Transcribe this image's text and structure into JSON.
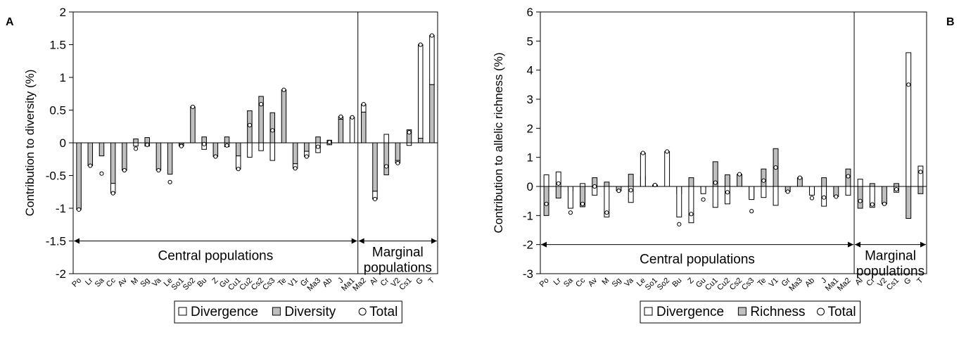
{
  "chart_data": [
    {
      "type": "bar",
      "panel_label": "A",
      "ylabel": "Contribution to diversity (%)",
      "ylim": [
        -2,
        2
      ],
      "yticks": [
        "2",
        "1.5",
        "1",
        "0.5",
        "0",
        "-0.5",
        "-1",
        "-1.5",
        "-2"
      ],
      "grid": false,
      "legend_position": "bottom",
      "legend": [
        "Divergence",
        "Diversity",
        "Total"
      ],
      "series_colors": {
        "divergence": "#ffffff",
        "diversity": "#bfbfbf"
      },
      "regions": [
        {
          "label": "Central populations",
          "label_lines": [
            "Central populations"
          ]
        },
        {
          "label": "Marginal populations",
          "label_lines": [
            "Marginal",
            "populations"
          ]
        }
      ],
      "categories": [
        "Po",
        "Lr",
        "Sa",
        "Cc",
        "Av",
        "M",
        "Sg",
        "Va",
        "Le",
        "So1",
        "So2",
        "Bu",
        "Z",
        "Gu",
        "Cu1",
        "Cu2",
        "Cs2",
        "Cs3",
        "Te",
        "V1",
        "Gr",
        "Ma3",
        "Ab",
        "J",
        "Ma1",
        "Ma2",
        "Al",
        "Cr",
        "V2",
        "Cs1",
        "G",
        "T"
      ],
      "divergence": [
        0,
        0,
        0,
        -0.15,
        0,
        -0.05,
        -0.05,
        0,
        0,
        -0.03,
        0,
        -0.1,
        0,
        -0.06,
        -0.2,
        -0.22,
        -0.12,
        -0.27,
        0,
        -0.07,
        -0.08,
        -0.15,
        -0.03,
        0.04,
        0.39,
        0.12,
        -0.12,
        0.13,
        -0.04,
        -0.04,
        1.43,
        0.75
      ],
      "diversity": [
        -1.02,
        -0.35,
        -0.2,
        -0.62,
        -0.42,
        0.06,
        0.08,
        -0.42,
        -0.48,
        -0.02,
        0.55,
        0.09,
        -0.21,
        0.09,
        -0.2,
        0.49,
        0.71,
        0.46,
        0.81,
        -0.32,
        -0.13,
        0.09,
        0.04,
        0.36,
        0,
        0.47,
        -0.74,
        -0.49,
        -0.27,
        0.2,
        0.07,
        0.89
      ],
      "total": [
        -1.02,
        -0.35,
        -0.47,
        -0.77,
        -0.42,
        -0.09,
        -0.03,
        -0.42,
        -0.6,
        -0.05,
        0.55,
        -0.02,
        -0.21,
        -0.04,
        -0.4,
        0.27,
        0.59,
        0.19,
        0.81,
        -0.39,
        -0.21,
        -0.06,
        0.01,
        0.4,
        0.39,
        0.59,
        -0.86,
        -0.36,
        -0.31,
        0.16,
        1.5,
        1.64
      ]
    },
    {
      "type": "bar",
      "panel_label": "B",
      "ylabel": "Contribution to allelic richness (%)",
      "ylim": [
        -3,
        6
      ],
      "yticks": [
        "6",
        "5",
        "4",
        "3",
        "2",
        "1",
        "0",
        "-1",
        "-2",
        "-3"
      ],
      "grid": false,
      "legend_position": "bottom",
      "legend": [
        "Divergence",
        "Richness",
        "Total"
      ],
      "series_colors": {
        "divergence": "#ffffff",
        "richness": "#bfbfbf"
      },
      "regions": [
        {
          "label": "Central populations",
          "label_lines": [
            "Central populations"
          ]
        },
        {
          "label": "Marginal populations",
          "label_lines": [
            "Marginal",
            "populations"
          ]
        }
      ],
      "categories": [
        "Po",
        "Lr",
        "Sa",
        "Cc",
        "Av",
        "M",
        "Sg",
        "Va",
        "Le",
        "So1",
        "So2",
        "Bu",
        "Z",
        "Gu",
        "Cu1",
        "Cu2",
        "Cs2",
        "Cs3",
        "Te",
        "V1",
        "Gr",
        "Ma3",
        "Ab",
        "J",
        "Ma1",
        "Ma2",
        "Al",
        "Cr",
        "V2",
        "Cs1",
        "G",
        "T"
      ],
      "divergence": [
        0.4,
        0.5,
        -0.75,
        0.1,
        -0.3,
        -1.05,
        0,
        -0.55,
        1.15,
        0,
        1.2,
        -1.05,
        -1.25,
        -0.25,
        -0.72,
        -0.6,
        0,
        -0.45,
        -0.38,
        -0.65,
        0,
        0,
        -0.3,
        -0.68,
        0,
        -0.3,
        0.25,
        -0.72,
        0,
        -0.2,
        4.6,
        0.7
      ],
      "richness": [
        -1,
        -0.4,
        -0.15,
        -0.7,
        0.3,
        0.15,
        -0.15,
        0.42,
        0.35,
        0.05,
        0,
        -0.25,
        0.3,
        -0.2,
        0.85,
        0.4,
        0.42,
        -0.4,
        0.6,
        1.3,
        -0.18,
        0.3,
        -0.15,
        0.3,
        -0.35,
        0.6,
        -0.75,
        0.1,
        -0.6,
        0.1,
        -1.1,
        -0.25
      ],
      "total": [
        -0.6,
        0.1,
        -0.9,
        -0.6,
        0,
        -0.9,
        -0.15,
        -0.13,
        1.15,
        0.05,
        1.2,
        -1.3,
        -0.95,
        -0.45,
        0.13,
        -0.2,
        0.42,
        -0.85,
        0.2,
        0.65,
        -0.18,
        0.3,
        -0.4,
        -0.38,
        -0.35,
        0.35,
        -0.5,
        -0.62,
        -0.6,
        -0.1,
        3.5,
        0.5
      ]
    }
  ]
}
